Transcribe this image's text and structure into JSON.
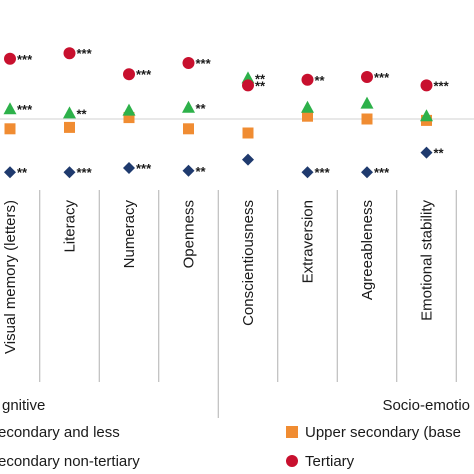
{
  "chart_data": {
    "type": "scatter",
    "categories": [
      "Visual memory (letters)",
      "Literacy",
      "Numeracy",
      "Openness",
      "Conscientiousness",
      "Extraversion",
      "Agreeableness",
      "Emotional stability"
    ],
    "groups": [
      {
        "label": "gnitive",
        "categories": [
          "Visual memory (letters)",
          "Literacy",
          "Numeracy",
          "Openness"
        ]
      },
      {
        "label": "Socio-emotio",
        "categories": [
          "Conscientiousness",
          "Extraversion",
          "Agreeableness",
          "Emotional stability"
        ]
      }
    ],
    "ylim": [
      -0.6,
      0.6
    ],
    "series": [
      {
        "name": "econdary and less",
        "marker": "diamond",
        "color": "#1f3a6e",
        "values": [
          -0.38,
          -0.38,
          -0.35,
          -0.37,
          -0.29,
          -0.38,
          -0.38,
          -0.24
        ],
        "sig": [
          "**",
          "***",
          "***",
          "**",
          "",
          "***",
          "***",
          "**"
        ]
      },
      {
        "name": "Upper secondary (base",
        "marker": "square",
        "color": "#f08c32",
        "values": [
          -0.07,
          -0.06,
          0.01,
          -0.07,
          -0.1,
          0.02,
          0.0,
          -0.01
        ],
        "sig": [
          "",
          "",
          "",
          "",
          "",
          "",
          "",
          ""
        ]
      },
      {
        "name": "econdary non-tertiary",
        "marker": "triangle",
        "color": "#2db14a",
        "values": [
          0.07,
          0.04,
          0.06,
          0.08,
          0.29,
          0.08,
          0.11,
          0.02
        ],
        "sig": [
          "***",
          "**",
          "",
          "**",
          "**",
          "",
          "",
          ""
        ]
      },
      {
        "name": "Tertiary",
        "marker": "circle",
        "color": "#c8102e",
        "values": [
          0.43,
          0.47,
          0.32,
          0.4,
          0.24,
          0.28,
          0.3,
          0.24
        ],
        "sig": [
          "***",
          "***",
          "***",
          "***",
          "**",
          "**",
          "***",
          "***"
        ]
      }
    ]
  }
}
